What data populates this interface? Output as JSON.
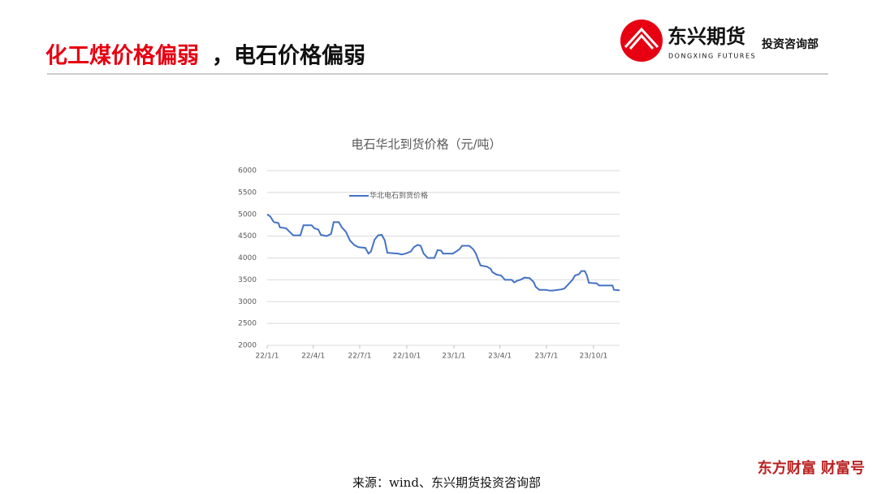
{
  "header": {
    "title_red": "化工煤价格偏弱",
    "title_black": "，电石价格偏弱",
    "logo_name": "东兴期货",
    "logo_en": "DONGXING FUTURES",
    "logo_dept": "投资咨询部"
  },
  "footer": {
    "source": "来源：wind、东兴期货投资咨询部",
    "watermark": "东方财富 财富号"
  },
  "chart_data": {
    "type": "line",
    "title": "电石华北到货价格（元/吨）",
    "x": [
      "2022-01-01",
      "2022-01-07",
      "2022-01-14",
      "2022-01-23",
      "2022-01-26",
      "2022-02-07",
      "2022-02-14",
      "2022-02-21",
      "2022-03-07",
      "2022-03-13",
      "2022-03-29",
      "2022-04-03",
      "2022-04-11",
      "2022-04-16",
      "2022-04-27",
      "2022-05-06",
      "2022-05-11",
      "2022-05-21",
      "2022-05-27",
      "2022-06-04",
      "2022-06-12",
      "2022-06-20",
      "2022-06-28",
      "2022-07-12",
      "2022-07-18",
      "2022-07-23",
      "2022-07-30",
      "2022-08-06",
      "2022-08-13",
      "2022-08-19",
      "2022-08-24",
      "2022-09-14",
      "2022-09-21",
      "2022-09-29",
      "2022-10-09",
      "2022-10-15",
      "2022-10-22",
      "2022-10-28",
      "2022-11-03",
      "2022-11-11",
      "2022-11-24",
      "2022-11-30",
      "2022-12-07",
      "2022-12-11",
      "2022-12-30",
      "2023-01-12",
      "2023-01-17",
      "2023-01-31",
      "2023-02-08",
      "2023-02-13",
      "2023-02-18",
      "2023-02-22",
      "2023-03-07",
      "2023-03-14",
      "2023-03-17",
      "2023-03-25",
      "2023-04-03",
      "2023-04-11",
      "2023-04-24",
      "2023-04-29",
      "2023-05-05",
      "2023-05-11",
      "2023-05-19",
      "2023-05-29",
      "2023-06-06",
      "2023-06-10",
      "2023-06-17",
      "2023-06-29",
      "2023-07-09",
      "2023-07-18",
      "2023-07-30",
      "2023-08-05",
      "2023-08-13",
      "2023-08-21",
      "2023-08-26",
      "2023-09-03",
      "2023-09-07",
      "2023-09-14",
      "2023-09-18",
      "2023-09-22",
      "2023-10-07",
      "2023-10-12",
      "2023-10-31",
      "2023-11-07",
      "2023-11-10",
      "2023-11-21"
    ],
    "series": [
      {
        "name": "华北电石到货价格",
        "color": "#4472c4",
        "values": [
          5000,
          4950,
          4820,
          4800,
          4700,
          4680,
          4600,
          4520,
          4520,
          4750,
          4750,
          4680,
          4650,
          4530,
          4500,
          4550,
          4820,
          4820,
          4700,
          4600,
          4400,
          4300,
          4250,
          4230,
          4100,
          4150,
          4420,
          4520,
          4530,
          4400,
          4120,
          4100,
          4080,
          4100,
          4150,
          4250,
          4300,
          4280,
          4100,
          4000,
          4000,
          4180,
          4170,
          4100,
          4100,
          4200,
          4280,
          4280,
          4200,
          4100,
          3950,
          3830,
          3800,
          3750,
          3680,
          3620,
          3600,
          3500,
          3500,
          3440,
          3480,
          3500,
          3550,
          3540,
          3450,
          3340,
          3270,
          3270,
          3250,
          3260,
          3280,
          3300,
          3400,
          3500,
          3600,
          3630,
          3700,
          3700,
          3600,
          3430,
          3420,
          3370,
          3370,
          3370,
          3270,
          3260
        ]
      }
    ],
    "xlim": [
      "2022-01-01",
      "2023-11-21"
    ],
    "xticks": [
      {
        "value": "2022-01-01",
        "label": "22/1/1"
      },
      {
        "value": "2022-04-01",
        "label": "22/4/1"
      },
      {
        "value": "2022-07-01",
        "label": "22/7/1"
      },
      {
        "value": "2022-10-01",
        "label": "22/10/1"
      },
      {
        "value": "2023-01-01",
        "label": "23/1/1"
      },
      {
        "value": "2023-04-01",
        "label": "23/4/1"
      },
      {
        "value": "2023-07-01",
        "label": "23/7/1"
      },
      {
        "value": "2023-10-01",
        "label": "23/10/1"
      }
    ],
    "ylim": [
      2000,
      6000
    ],
    "yticks": [
      2000,
      2500,
      3000,
      3500,
      4000,
      4500,
      5000,
      5500,
      6000
    ],
    "grid": true,
    "legend": "top-left"
  }
}
